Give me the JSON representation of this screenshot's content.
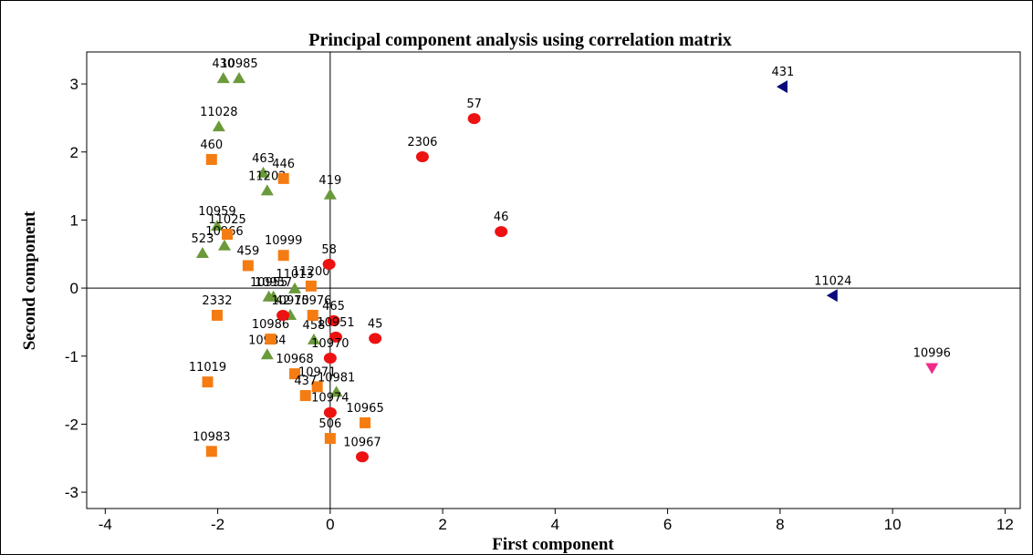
{
  "chart_data": {
    "type": "scatter",
    "title": "Principal component analysis using correlation matrix",
    "x_label": "First component",
    "y_label": "Second component",
    "xlim": [
      -4.33,
      12.27
    ],
    "ylim": [
      -3.24,
      3.47
    ],
    "xticks": [
      -4,
      -2,
      0,
      2,
      4,
      6,
      8,
      10,
      12
    ],
    "yticks": [
      -3,
      -2,
      -1,
      0,
      1,
      2,
      3
    ],
    "reference_lines": {
      "x": 0,
      "y": 0
    },
    "series": [
      {
        "marker": "triangle-up",
        "color": "#6b9a3a",
        "labels": [
          "430",
          "10985",
          "11028",
          "463",
          "11202",
          "419",
          "10959",
          "523",
          "10966",
          "11013",
          "10955",
          "10957",
          "10975",
          "10984",
          "458",
          "10981"
        ],
        "x": [
          -1.9,
          -1.62,
          -1.98,
          -1.19,
          -1.12,
          0,
          -2.01,
          -2.27,
          -1.88,
          -0.63,
          -1.09,
          -1.01,
          -0.71,
          -1.12,
          -0.29,
          0.11
        ],
        "values": [
          3.08,
          3.08,
          2.37,
          1.69,
          1.43,
          1.37,
          0.91,
          0.51,
          0.62,
          -0.01,
          -0.13,
          -0.13,
          -0.4,
          -0.98,
          -0.76,
          -1.53
        ]
      },
      {
        "marker": "square",
        "color": "#f57c12",
        "labels": [
          "460",
          "446",
          "11025",
          "459",
          "10999",
          "11200",
          "10976",
          "2332",
          "10986",
          "11019",
          "10968",
          "10971",
          "437",
          "10965",
          "506",
          "10983"
        ],
        "x": [
          -2.11,
          -0.83,
          -1.83,
          -1.46,
          -0.83,
          -0.34,
          -0.31,
          -2.01,
          -1.06,
          -2.18,
          -0.63,
          -0.23,
          -0.44,
          0.62,
          0,
          -2.11
        ],
        "values": [
          1.89,
          1.61,
          0.79,
          0.33,
          0.48,
          0.03,
          -0.4,
          -0.4,
          -0.75,
          -1.38,
          -1.26,
          -1.45,
          -1.58,
          -1.98,
          -2.21,
          -2.4
        ]
      },
      {
        "marker": "circle",
        "color": "#ee1111",
        "labels": [
          "57",
          "2306",
          "46",
          "58",
          "465",
          "42",
          "10951",
          "45",
          "10970",
          "10974",
          "10967"
        ],
        "x": [
          2.56,
          1.64,
          3.04,
          -0.02,
          0.06,
          -0.84,
          0.1,
          0.8,
          0,
          0,
          0.57
        ],
        "values": [
          2.49,
          1.93,
          0.83,
          0.35,
          -0.48,
          -0.4,
          -0.72,
          -0.74,
          -1.03,
          -1.83,
          -2.48
        ]
      },
      {
        "marker": "triangle-left",
        "color": "#0a0a7a",
        "labels": [
          "431",
          "11024"
        ],
        "x": [
          8.05,
          8.94
        ],
        "values": [
          2.96,
          -0.11
        ]
      },
      {
        "marker": "triangle-down",
        "color": "#ee2a8a",
        "labels": [
          "10996"
        ],
        "x": [
          10.7
        ],
        "values": [
          -1.17
        ]
      }
    ]
  }
}
